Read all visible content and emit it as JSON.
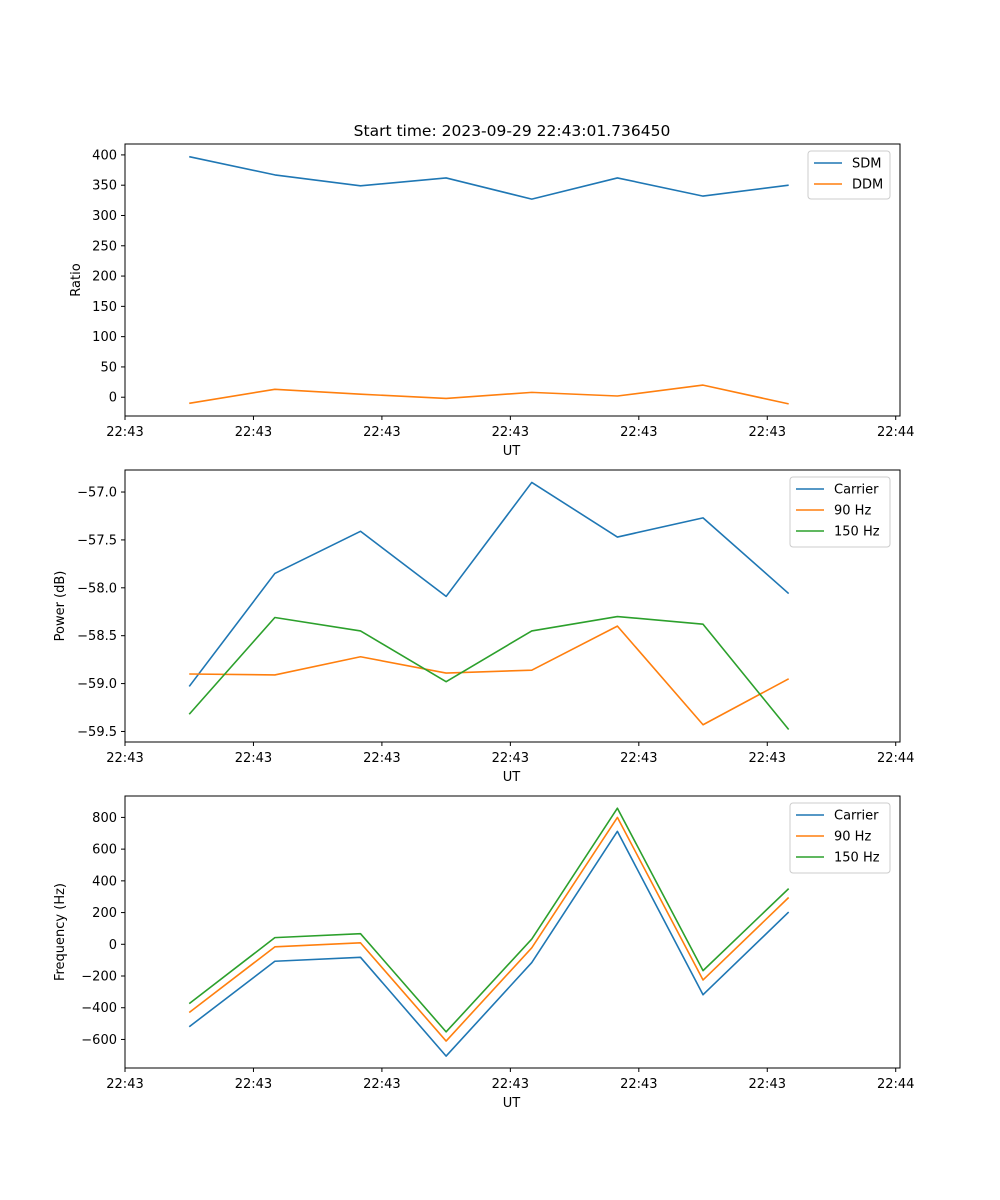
{
  "figure_title": "Start time: 2023-09-29 22:43:01.736450",
  "colors": {
    "c0": "#1f77b4",
    "c1": "#ff7f0e",
    "c2": "#2ca02c"
  },
  "chart_data": [
    {
      "type": "line",
      "title": "Start time: 2023-09-29 22:43:01.736450",
      "xlabel": "UT",
      "ylabel": "Ratio",
      "x": [
        0,
        1,
        2,
        3,
        4,
        5,
        6,
        7
      ],
      "xlim": [
        -0.75,
        8.3
      ],
      "xticks": [
        -0.75,
        0.75,
        2.25,
        3.75,
        5.25,
        6.75,
        8.25
      ],
      "xtick_labels": [
        "22:43",
        "22:43",
        "22:43",
        "22:43",
        "22:43",
        "22:43",
        "22:44"
      ],
      "ylim": [
        -31,
        418
      ],
      "yticks": [
        0,
        50,
        100,
        150,
        200,
        250,
        300,
        350,
        400
      ],
      "ytick_labels": [
        "0",
        "50",
        "100",
        "150",
        "200",
        "250",
        "300",
        "350",
        "400"
      ],
      "legend_position": "top-right",
      "series": [
        {
          "name": "SDM",
          "color": "#1f77b4",
          "values": [
            397,
            367,
            349,
            362,
            327,
            362,
            332,
            350
          ]
        },
        {
          "name": "DDM",
          "color": "#ff7f0e",
          "values": [
            -10,
            13,
            5,
            -2,
            8,
            2,
            20,
            -11
          ]
        }
      ]
    },
    {
      "type": "line",
      "title": "",
      "xlabel": "UT",
      "ylabel": "Power (dB)",
      "x": [
        0,
        1,
        2,
        3,
        4,
        5,
        6,
        7
      ],
      "xlim": [
        -0.75,
        8.3
      ],
      "xticks": [
        -0.75,
        0.75,
        2.25,
        3.75,
        5.25,
        6.75,
        8.25
      ],
      "xtick_labels": [
        "22:43",
        "22:43",
        "22:43",
        "22:43",
        "22:43",
        "22:43",
        "22:44"
      ],
      "ylim": [
        -59.61,
        -56.77
      ],
      "yticks": [
        -57.0,
        -57.5,
        -58.0,
        -58.5,
        -59.0,
        -59.5
      ],
      "ytick_labels": [
        "−57.0",
        "−57.5",
        "−58.0",
        "−58.5",
        "−59.0",
        "−59.5"
      ],
      "legend_position": "top-right",
      "series": [
        {
          "name": "Carrier",
          "color": "#1f77b4",
          "values": [
            -59.03,
            -57.85,
            -57.41,
            -58.09,
            -56.9,
            -57.47,
            -57.27,
            -58.06
          ]
        },
        {
          "name": "90 Hz",
          "color": "#ff7f0e",
          "values": [
            -58.9,
            -58.91,
            -58.72,
            -58.89,
            -58.86,
            -58.4,
            -59.43,
            -58.95
          ]
        },
        {
          "name": "150 Hz",
          "color": "#2ca02c",
          "values": [
            -59.32,
            -58.31,
            -58.45,
            -58.98,
            -58.45,
            -58.3,
            -58.38,
            -59.48
          ]
        }
      ]
    },
    {
      "type": "line",
      "title": "",
      "xlabel": "UT",
      "ylabel": "Frequency (Hz)",
      "x": [
        0,
        1,
        2,
        3,
        4,
        5,
        6,
        7
      ],
      "xlim": [
        -0.75,
        8.3
      ],
      "xticks": [
        -0.75,
        0.75,
        2.25,
        3.75,
        5.25,
        6.75,
        8.25
      ],
      "xtick_labels": [
        "22:43",
        "22:43",
        "22:43",
        "22:43",
        "22:43",
        "22:43",
        "22:44"
      ],
      "ylim": [
        -780,
        935
      ],
      "yticks": [
        800,
        600,
        400,
        200,
        0,
        -200,
        -400,
        -600
      ],
      "ytick_labels": [
        "800",
        "600",
        "400",
        "200",
        "0",
        "−200",
        "−400",
        "−600"
      ],
      "legend_position": "top-right",
      "series": [
        {
          "name": "Carrier",
          "color": "#1f77b4",
          "values": [
            -520,
            -107,
            -82,
            -705,
            -115,
            712,
            -318,
            203
          ]
        },
        {
          "name": "90 Hz",
          "color": "#ff7f0e",
          "values": [
            -430,
            -16,
            9,
            -610,
            -22,
            800,
            -225,
            295
          ]
        },
        {
          "name": "150 Hz",
          "color": "#2ca02c",
          "values": [
            -374,
            42,
            67,
            -552,
            33,
            858,
            -166,
            351
          ]
        }
      ]
    }
  ]
}
